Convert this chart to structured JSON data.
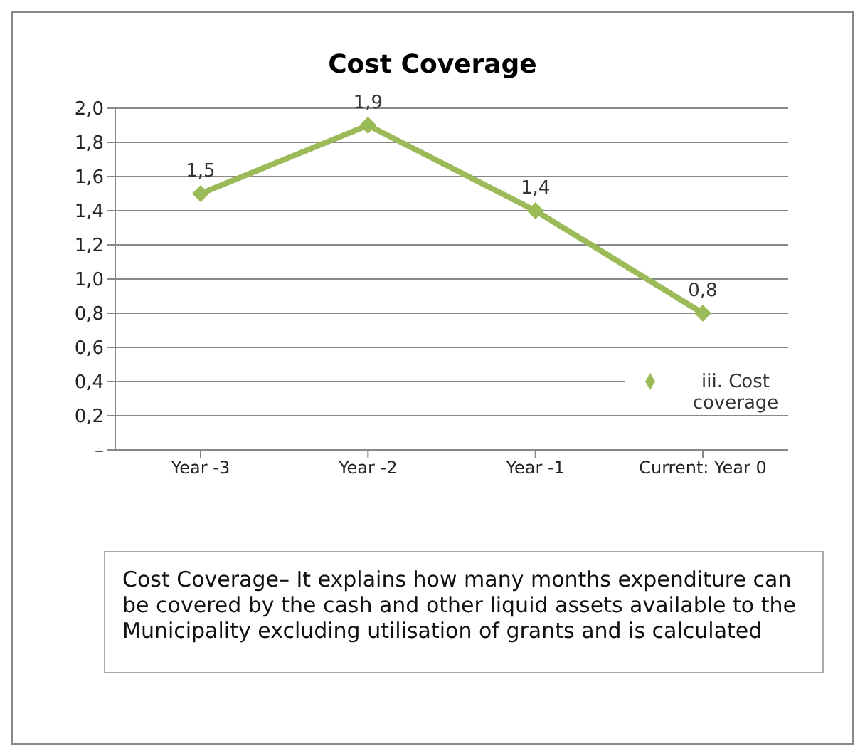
{
  "chart_data": {
    "type": "line",
    "title": "Cost Coverage",
    "categories": [
      "Year -3",
      "Year -2",
      "Year -1",
      "Current: Year 0"
    ],
    "series": [
      {
        "name": "iii. Cost coverage",
        "color": "#9bbb59",
        "values": [
          1.5,
          1.9,
          1.4,
          0.8
        ],
        "value_labels": [
          "1,5",
          "1,9",
          "1,4",
          "0,8"
        ]
      }
    ],
    "ylim": [
      0,
      2
    ],
    "yticks": [
      {
        "value": 0,
        "label": "–"
      },
      {
        "value": 0.2,
        "label": "0,2"
      },
      {
        "value": 0.4,
        "label": "0,4"
      },
      {
        "value": 0.6,
        "label": "0,6"
      },
      {
        "value": 0.8,
        "label": "0,8"
      },
      {
        "value": 1,
        "label": "1,0"
      },
      {
        "value": 1.2,
        "label": "1,2"
      },
      {
        "value": 1.4,
        "label": "1,4"
      },
      {
        "value": 1.6,
        "label": "1,6"
      },
      {
        "value": 1.8,
        "label": "1,8"
      },
      {
        "value": 2,
        "label": "2,0"
      }
    ],
    "grid": "y",
    "legend": "right",
    "marker": "diamond",
    "line_style": "solid",
    "annotations": [
      "Cost Coverage– It explains how many months expenditure can be covered by the  cash and other liquid assets available to the Municipality excluding utilisation of grants and is calculated"
    ]
  }
}
